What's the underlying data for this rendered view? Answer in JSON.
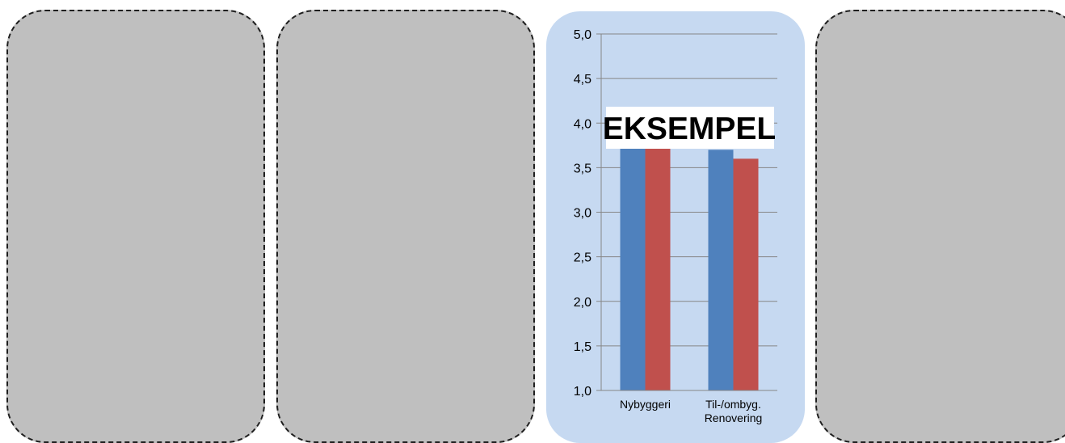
{
  "panels": {
    "placeholder_color": "#bfbfbf",
    "chart_panel_color": "#c6d9f1"
  },
  "chart_data": {
    "type": "bar",
    "categories": [
      [
        "Nybyggeri"
      ],
      [
        "Til-/ombyg.",
        "Renovering"
      ]
    ],
    "series": [
      {
        "values": [
          3.8,
          3.7
        ],
        "color": "#4f81bd"
      },
      {
        "values": [
          4.0,
          3.6
        ],
        "color": "#c0504d"
      }
    ],
    "ylim": [
      1.0,
      5.0
    ],
    "yticks": [
      "1,0",
      "1,5",
      "2,0",
      "2,5",
      "3,0",
      "3,5",
      "4,0",
      "4,5",
      "5,0"
    ],
    "ytick_values": [
      1.0,
      1.5,
      2.0,
      2.5,
      3.0,
      3.5,
      4.0,
      4.5,
      5.0
    ],
    "grid": true,
    "watermark": "EKSEMPEL"
  }
}
